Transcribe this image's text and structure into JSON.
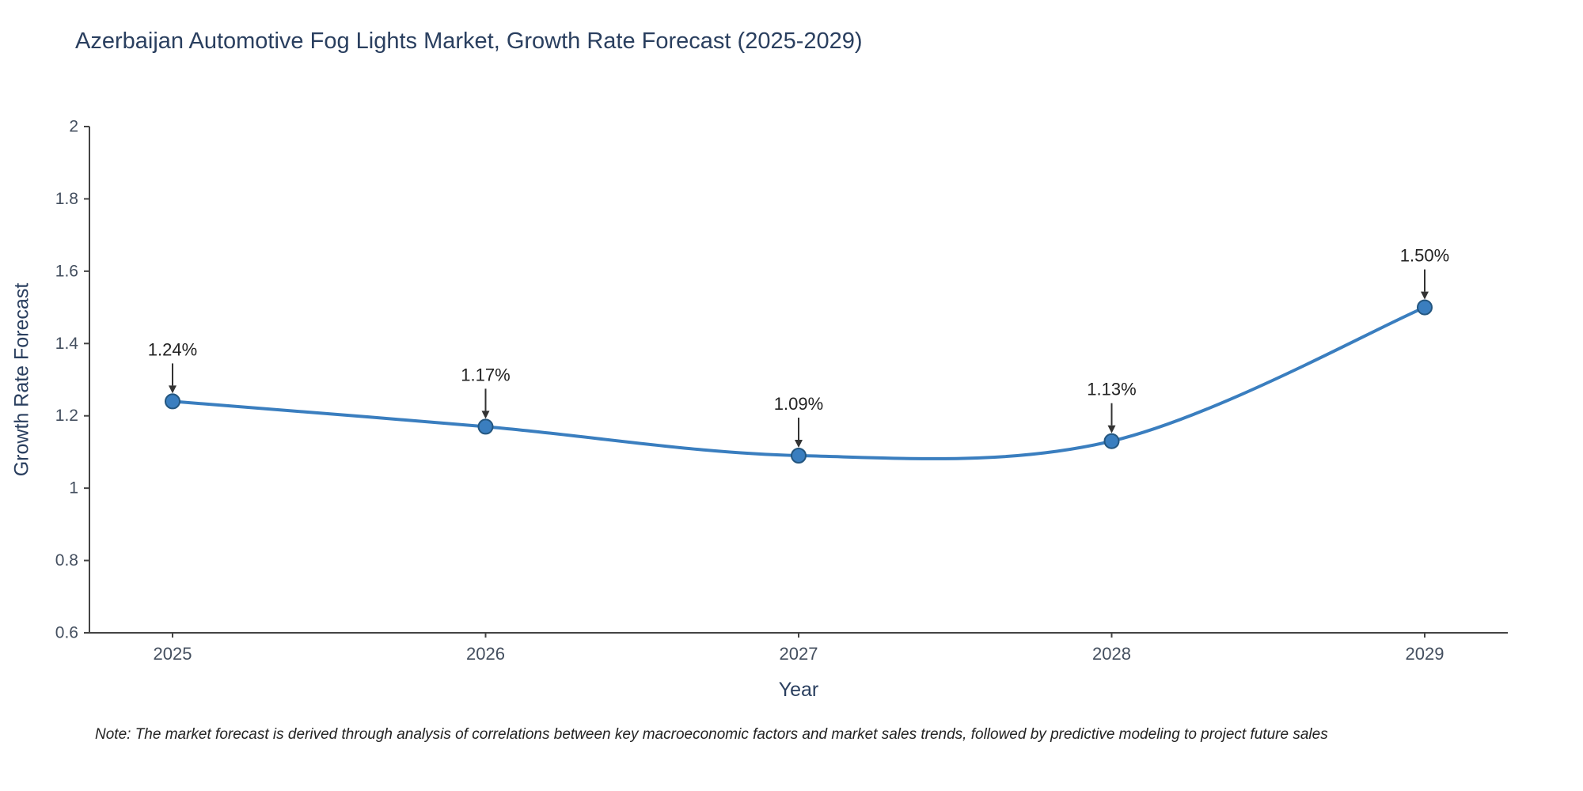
{
  "chart_data": {
    "type": "line",
    "title": "Azerbaijan Automotive Fog Lights Market, Growth Rate Forecast (2025-2029)",
    "xlabel": "Year",
    "ylabel": "Growth Rate Forecast",
    "categories": [
      "2025",
      "2026",
      "2027",
      "2028",
      "2029"
    ],
    "values": [
      1.24,
      1.17,
      1.09,
      1.13,
      1.5
    ],
    "point_labels": [
      "1.24%",
      "1.17%",
      "1.09%",
      "1.13%",
      "1.50%"
    ],
    "ylim": [
      0.6,
      2
    ],
    "yticks": [
      0.6,
      0.8,
      1,
      1.2,
      1.4,
      1.6,
      1.8,
      2
    ],
    "grid": false,
    "legend": "none",
    "line_color": "#3a7ebf",
    "marker_color": "#3a7ebf",
    "marker_edge_color": "#24567f",
    "axis_color": "#444444",
    "tick_label_color": "#444f5f",
    "annotation_text_color": "#222222",
    "annotation_arrow_color": "#333333",
    "title_color": "#2a3f5f"
  },
  "note": "Note: The market forecast is derived through analysis of correlations between key macroeconomic factors and market sales trends, followed by predictive modeling to project future sales"
}
